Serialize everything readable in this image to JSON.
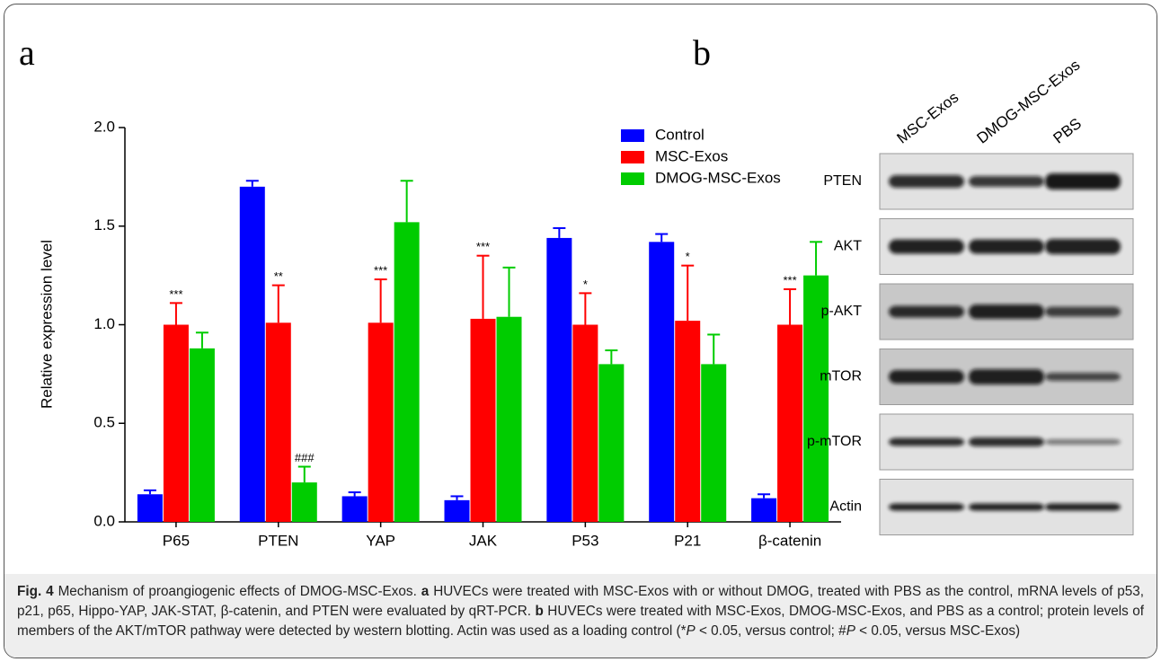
{
  "chart_data": {
    "type": "bar",
    "panel_label": "a",
    "ylabel": "Relative expression level",
    "categories": [
      "P65",
      "PTEN",
      "YAP",
      "JAK",
      "P53",
      "P21",
      "β-catenin"
    ],
    "ylim": [
      0,
      2
    ],
    "yticks": [
      {
        "value": 0,
        "label": "0.0"
      },
      {
        "value": 0.5,
        "label": "0.5"
      },
      {
        "value": 1,
        "label": "1.0"
      },
      {
        "value": 1.5,
        "label": "1.5"
      },
      {
        "value": 2,
        "label": "2.0"
      }
    ],
    "legend": "upper right",
    "series": [
      {
        "name": "Control",
        "color": "#0000ff",
        "values": [
          0.14,
          1.7,
          0.13,
          0.11,
          1.44,
          1.42,
          0.12
        ],
        "errors": [
          0.02,
          0.03,
          0.02,
          0.02,
          0.05,
          0.04,
          0.02
        ],
        "annotations": [
          null,
          null,
          null,
          null,
          null,
          null,
          null
        ]
      },
      {
        "name": "MSC-Exos",
        "color": "#ff0000",
        "values": [
          1.0,
          1.01,
          1.01,
          1.03,
          1.0,
          1.02,
          1.0
        ],
        "errors": [
          0.11,
          0.19,
          0.22,
          0.32,
          0.16,
          0.28,
          0.18
        ],
        "annotations": [
          "***",
          "**",
          "***",
          "***",
          "*",
          "*",
          "***"
        ]
      },
      {
        "name": "DMOG-MSC-Exos",
        "color": "#00cc00",
        "values": [
          0.88,
          0.2,
          1.52,
          1.04,
          0.8,
          0.8,
          1.25
        ],
        "errors": [
          0.08,
          0.08,
          0.21,
          0.25,
          0.07,
          0.15,
          0.17
        ],
        "annotations": [
          null,
          "###",
          null,
          null,
          null,
          null,
          null
        ]
      }
    ]
  },
  "blot": {
    "panel_label": "b",
    "lanes": [
      "MSC-Exos",
      "DMOG-MSC-Exos",
      "PBS"
    ],
    "rows": [
      "PTEN",
      "AKT",
      "p-AKT",
      "mTOR",
      "p-mTOR",
      "Actin"
    ]
  },
  "caption": {
    "label": "Fig. 4",
    "parts": [
      {
        "text": "Mechanism of proangiogenic effects of DMOG-MSC-Exos. ",
        "style": "normal"
      },
      {
        "text": "a",
        "style": "bold"
      },
      {
        "text": " HUVECs were treated with MSC-Exos with or without DMOG, treated with PBS as the control, mRNA levels of p53, p21, p65, Hippo-YAP, JAK-STAT, β-catenin, and PTEN were evaluated by qRT-PCR. ",
        "style": "normal"
      },
      {
        "text": "b",
        "style": "bold"
      },
      {
        "text": " HUVECs were treated with MSC-Exos, DMOG-MSC-Exos, and PBS as a control; protein levels of members of the AKT/mTOR pathway were detected by western blotting. Actin was used as a loading control (*",
        "style": "normal"
      },
      {
        "text": "P",
        "style": "italic"
      },
      {
        "text": " < 0.05, versus control; #",
        "style": "normal"
      },
      {
        "text": "P",
        "style": "italic"
      },
      {
        "text": " < 0.05, versus MSC-Exos)",
        "style": "normal"
      }
    ]
  }
}
